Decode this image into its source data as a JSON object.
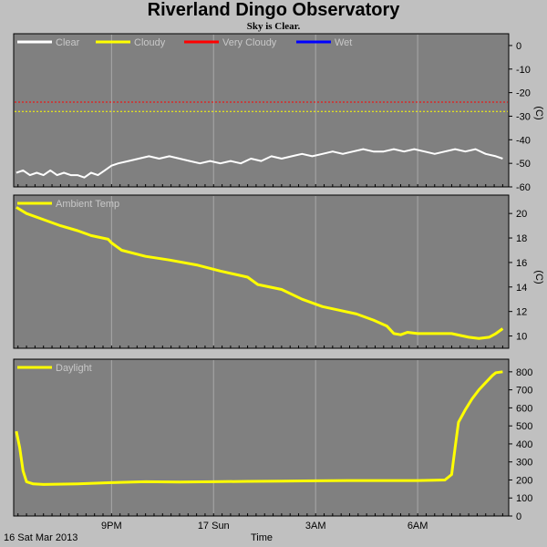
{
  "title": "Riverland Dingo Observatory",
  "subtitle": "Sky is Clear.",
  "footer": {
    "date": "16 Sat Mar 2013",
    "xlabel": "Time"
  },
  "x_ticks": [
    {
      "label": "9PM",
      "t": 1
    },
    {
      "label": "17 Sun",
      "t": 4
    },
    {
      "label": "3AM",
      "t": 7
    },
    {
      "label": "6AM",
      "t": 10
    }
  ],
  "colors": {
    "plot_bg": "#808080",
    "grid": "#a8a8a8",
    "page_bg": "#c0c0c0"
  },
  "chart_data": [
    {
      "type": "line",
      "name": "cloud",
      "legend": [
        {
          "label": "Clear",
          "color": "#ffffff"
        },
        {
          "label": "Cloudy",
          "color": "#ffff00"
        },
        {
          "label": "Very Cloudy",
          "color": "#ff0000"
        },
        {
          "label": "Wet",
          "color": "#0000ff"
        }
      ],
      "ylabel": "(C)",
      "ylim": [
        -60,
        5
      ],
      "yticks": [
        0,
        -10,
        -20,
        -30,
        -40,
        -50,
        -60
      ],
      "thresholds": [
        {
          "value": -24,
          "color": "#ff0000"
        },
        {
          "value": -28,
          "color": "#ffff00"
        }
      ],
      "series": [
        {
          "name": "Clear",
          "color": "#ffffff",
          "x": [
            -1.8,
            -1.6,
            -1.4,
            -1.2,
            -1.0,
            -0.8,
            -0.6,
            -0.4,
            -0.2,
            0.0,
            0.2,
            0.4,
            0.6,
            0.8,
            1.0,
            1.2,
            1.5,
            1.8,
            2.1,
            2.4,
            2.7,
            3.0,
            3.3,
            3.6,
            3.9,
            4.2,
            4.5,
            4.8,
            5.1,
            5.4,
            5.7,
            6.0,
            6.3,
            6.6,
            6.9,
            7.2,
            7.5,
            7.8,
            8.1,
            8.4,
            8.7,
            9.0,
            9.3,
            9.6,
            9.9,
            10.2,
            10.5,
            10.8,
            11.1,
            11.4,
            11.7,
            12.0,
            12.3,
            12.5
          ],
          "values": [
            -54,
            -53,
            -55,
            -54,
            -55,
            -53,
            -55,
            -54,
            -55,
            -55,
            -56,
            -54,
            -55,
            -53,
            -51,
            -50,
            -49,
            -48,
            -47,
            -48,
            -47,
            -48,
            -49,
            -50,
            -49,
            -50,
            -49,
            -50,
            -48,
            -49,
            -47,
            -48,
            -47,
            -46,
            -47,
            -46,
            -45,
            -46,
            -45,
            -44,
            -45,
            -45,
            -44,
            -45,
            -44,
            -45,
            -46,
            -45,
            -44,
            -45,
            -44,
            -46,
            -47,
            -48
          ]
        }
      ]
    },
    {
      "type": "line",
      "name": "ambient",
      "legend": [
        {
          "label": "Ambient Temp",
          "color": "#ffff00"
        }
      ],
      "ylabel": "(C)",
      "ylim": [
        9,
        21.5
      ],
      "yticks": [
        20,
        18,
        16,
        14,
        12,
        10
      ],
      "series": [
        {
          "name": "Ambient Temp",
          "color": "#ffff00",
          "x": [
            -1.8,
            -1.5,
            -1.0,
            -0.5,
            0.0,
            0.4,
            0.9,
            1.0,
            1.3,
            2.0,
            2.7,
            3.5,
            4.2,
            5.0,
            5.3,
            6.0,
            6.6,
            7.2,
            7.7,
            8.2,
            8.7,
            9.1,
            9.3,
            9.5,
            9.7,
            10.0,
            10.5,
            11.0,
            11.5,
            11.8,
            12.1,
            12.3,
            12.5
          ],
          "values": [
            20.5,
            20.0,
            19.5,
            19.0,
            18.6,
            18.2,
            17.9,
            17.6,
            17.0,
            16.5,
            16.2,
            15.8,
            15.3,
            14.8,
            14.2,
            13.8,
            13.0,
            12.4,
            12.1,
            11.8,
            11.3,
            10.8,
            10.2,
            10.1,
            10.3,
            10.2,
            10.2,
            10.2,
            9.9,
            9.8,
            9.9,
            10.2,
            10.6
          ]
        }
      ]
    },
    {
      "type": "line",
      "name": "daylight",
      "legend": [
        {
          "label": "Daylight",
          "color": "#ffff00"
        }
      ],
      "ylabel": "",
      "ylim": [
        0,
        870
      ],
      "yticks": [
        800,
        700,
        600,
        500,
        400,
        300,
        200,
        100,
        0
      ],
      "series": [
        {
          "name": "Daylight",
          "color": "#ffff00",
          "x": [
            -1.8,
            -1.7,
            -1.6,
            -1.5,
            -1.3,
            -1.0,
            0.0,
            1.0,
            2.0,
            3.0,
            4.0,
            5.0,
            6.0,
            7.0,
            8.0,
            9.0,
            10.0,
            10.8,
            11.0,
            11.1,
            11.2,
            11.4,
            11.6,
            11.8,
            12.0,
            12.2,
            12.3,
            12.5
          ],
          "values": [
            470,
            380,
            250,
            190,
            178,
            175,
            178,
            185,
            190,
            188,
            190,
            192,
            193,
            195,
            197,
            197,
            197,
            200,
            230,
            380,
            520,
            590,
            650,
            700,
            740,
            780,
            795,
            800
          ]
        }
      ]
    }
  ]
}
